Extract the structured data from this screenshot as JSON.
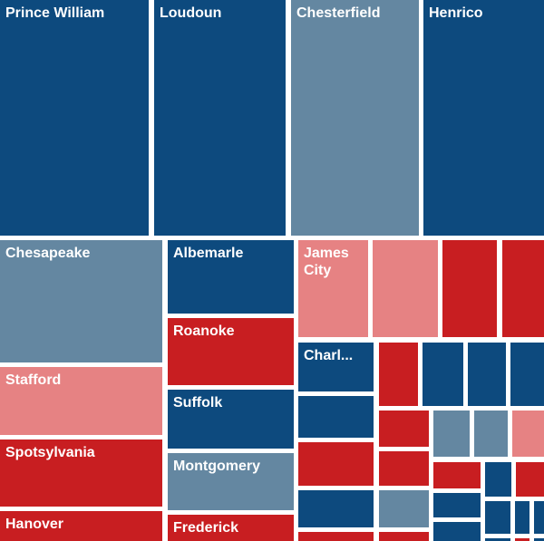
{
  "colors": {
    "dark_blue": "#0d4a7e",
    "steel_blue": "#6487a1",
    "red": "#c81e21",
    "pink": "#e68283"
  },
  "chart_data": {
    "type": "treemap",
    "tiles": [
      {
        "label": "Prince William",
        "color": "dark_blue"
      },
      {
        "label": "Loudoun",
        "color": "dark_blue"
      },
      {
        "label": "Chesterfield",
        "color": "steel_blue"
      },
      {
        "label": "Henrico",
        "color": "dark_blue"
      },
      {
        "label": "Chesapeake",
        "color": "steel_blue"
      },
      {
        "label": "Stafford",
        "color": "pink"
      },
      {
        "label": "Spotsylvania",
        "color": "red"
      },
      {
        "label": "Hanover",
        "color": "red"
      },
      {
        "label": "Albemarle",
        "color": "dark_blue"
      },
      {
        "label": "Roanoke",
        "color": "red"
      },
      {
        "label": "Suffolk",
        "color": "dark_blue"
      },
      {
        "label": "Montgomery",
        "color": "steel_blue"
      },
      {
        "label": "Frederick",
        "color": "red"
      },
      {
        "label": "James City",
        "color": "pink"
      },
      {
        "label": "",
        "color": "pink"
      },
      {
        "label": "",
        "color": "red"
      },
      {
        "label": "",
        "color": "red"
      },
      {
        "label": "Charl...",
        "color": "dark_blue"
      },
      {
        "label": "",
        "color": "dark_blue"
      },
      {
        "label": "",
        "color": "red"
      },
      {
        "label": "",
        "color": "dark_blue"
      },
      {
        "label": "",
        "color": "red"
      },
      {
        "label": "",
        "color": "red"
      },
      {
        "label": "",
        "color": "dark_blue"
      },
      {
        "label": "",
        "color": "dark_blue"
      },
      {
        "label": "",
        "color": "dark_blue"
      },
      {
        "label": "",
        "color": "red"
      },
      {
        "label": "",
        "color": "steel_blue"
      },
      {
        "label": "",
        "color": "steel_blue"
      },
      {
        "label": "",
        "color": "pink"
      },
      {
        "label": "",
        "color": "red"
      },
      {
        "label": "",
        "color": "steel_blue"
      },
      {
        "label": "",
        "color": "red"
      },
      {
        "label": "",
        "color": "red"
      },
      {
        "label": "",
        "color": "dark_blue"
      },
      {
        "label": "",
        "color": "red"
      },
      {
        "label": "",
        "color": "dark_blue"
      },
      {
        "label": "",
        "color": "dark_blue"
      },
      {
        "label": "",
        "color": "dark_blue"
      },
      {
        "label": "",
        "color": "dark_blue"
      },
      {
        "label": "",
        "color": "dark_blue"
      },
      {
        "label": "",
        "color": "dark_blue"
      },
      {
        "label": "",
        "color": "red"
      },
      {
        "label": "",
        "color": "dark_blue"
      },
      {
        "label": "",
        "color": "dark_blue"
      }
    ]
  }
}
